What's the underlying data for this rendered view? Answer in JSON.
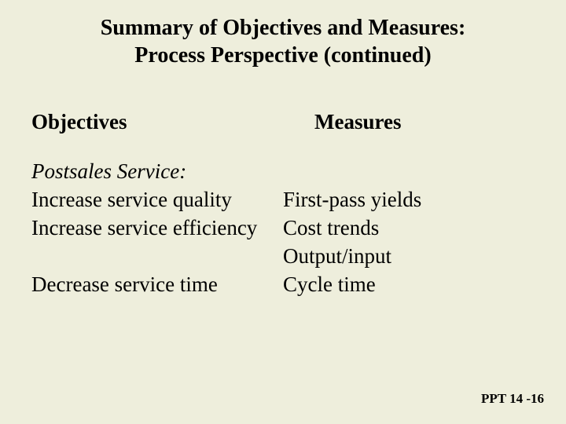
{
  "colors": {
    "background": "#eeeedc",
    "text": "#000000"
  },
  "typography": {
    "family": "Times New Roman",
    "title_size_pt": 28,
    "header_size_pt": 27,
    "body_size_pt": 27,
    "footer_size_pt": 17
  },
  "title": {
    "line1": "Summary of Objectives and Measures:",
    "line2": "Process Perspective (continued)"
  },
  "columns": {
    "objectives": "Objectives",
    "measures": "Measures"
  },
  "section_label": "Postsales Service:",
  "rows": [
    {
      "objective": "Increase service quality",
      "measure": "First-pass yields"
    },
    {
      "objective": "Increase service efficiency",
      "measure": "Cost trends"
    },
    {
      "objective": "",
      "measure": "Output/input"
    },
    {
      "objective": "Decrease service time",
      "measure": "Cycle time"
    }
  ],
  "footer": "PPT 14 -16"
}
